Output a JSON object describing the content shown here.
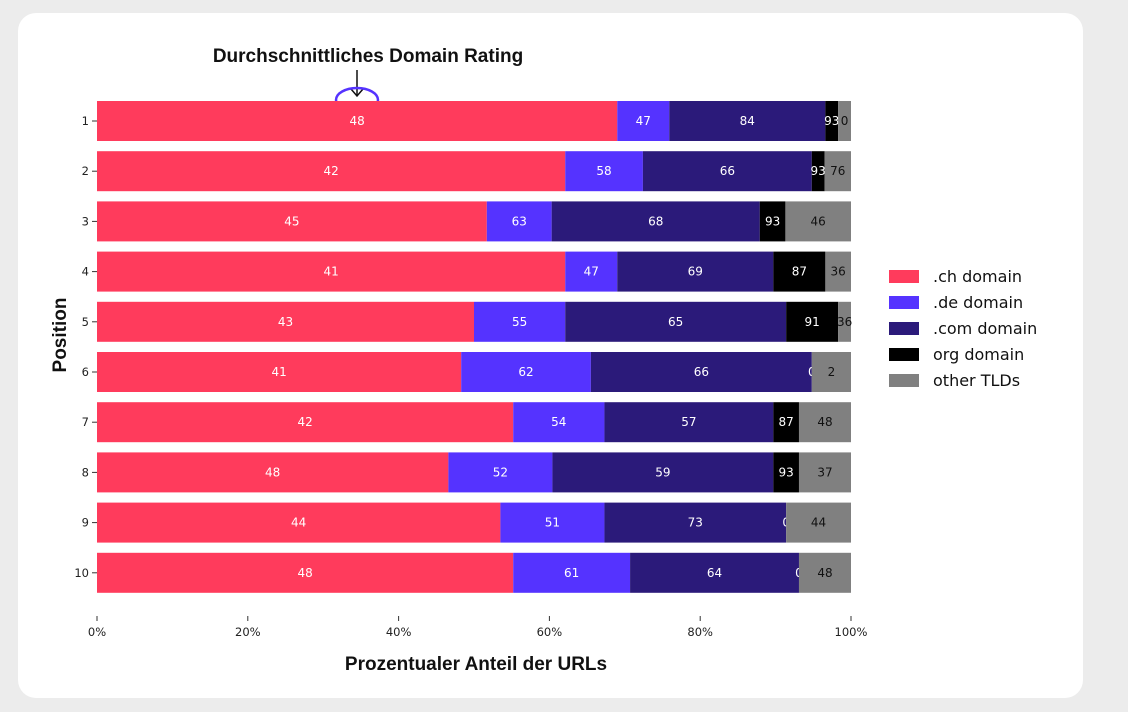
{
  "chart_data": {
    "type": "bar",
    "orientation": "horizontal",
    "stacked": true,
    "annotation": "Durchschnittliches Domain Rating",
    "xlabel": "Prozentualer Anteil der URLs",
    "ylabel": "Position",
    "xlim": [
      0,
      100
    ],
    "xticks": [
      "0%",
      "20%",
      "40%",
      "60%",
      "80%",
      "100%"
    ],
    "categories": [
      "1",
      "2",
      "3",
      "4",
      "5",
      "6",
      "7",
      "8",
      "9",
      "10"
    ],
    "series": [
      {
        "name": ".ch domain",
        "color": "#FF3B5C",
        "label_color": "#ffffff",
        "values": [
          69.0,
          62.1,
          51.7,
          62.1,
          50.0,
          48.3,
          55.2,
          46.6,
          53.5,
          55.2
        ],
        "labels": [
          "48",
          "42",
          "45",
          "41",
          "43",
          "41",
          "42",
          "48",
          "44",
          "48"
        ]
      },
      {
        "name": ".de domain",
        "color": "#5533FF",
        "label_color": "#ffffff",
        "values": [
          6.9,
          10.3,
          8.6,
          6.9,
          12.1,
          17.2,
          12.1,
          13.8,
          13.8,
          15.5
        ],
        "labels": [
          "47",
          "58",
          "63",
          "47",
          "55",
          "62",
          "54",
          "52",
          "51",
          "61"
        ]
      },
      {
        "name": ".com domain",
        "color": "#2B1A7A",
        "label_color": "#ffffff",
        "values": [
          20.7,
          22.4,
          27.6,
          20.7,
          29.3,
          29.3,
          22.4,
          29.3,
          24.1,
          22.4
        ],
        "labels": [
          "84",
          "66",
          "68",
          "69",
          "65",
          "66",
          "57",
          "59",
          "73",
          "64"
        ]
      },
      {
        "name": "org domain",
        "color": "#000000",
        "label_color": "#ffffff",
        "values": [
          1.7,
          1.7,
          3.4,
          6.9,
          6.9,
          0,
          3.4,
          3.4,
          0,
          0
        ],
        "labels": [
          "93",
          "93",
          "93",
          "87",
          "91",
          "0",
          "87",
          "93",
          "0",
          "0"
        ]
      },
      {
        "name": "other TLDs",
        "color": "#808080",
        "label_color": "#111111",
        "values": [
          1.7,
          3.5,
          8.7,
          3.4,
          1.7,
          5.2,
          6.9,
          6.9,
          8.6,
          6.9
        ],
        "labels": [
          "0",
          "76",
          "46",
          "36",
          "36",
          "2",
          "48",
          "37",
          "44",
          "48"
        ]
      }
    ]
  }
}
